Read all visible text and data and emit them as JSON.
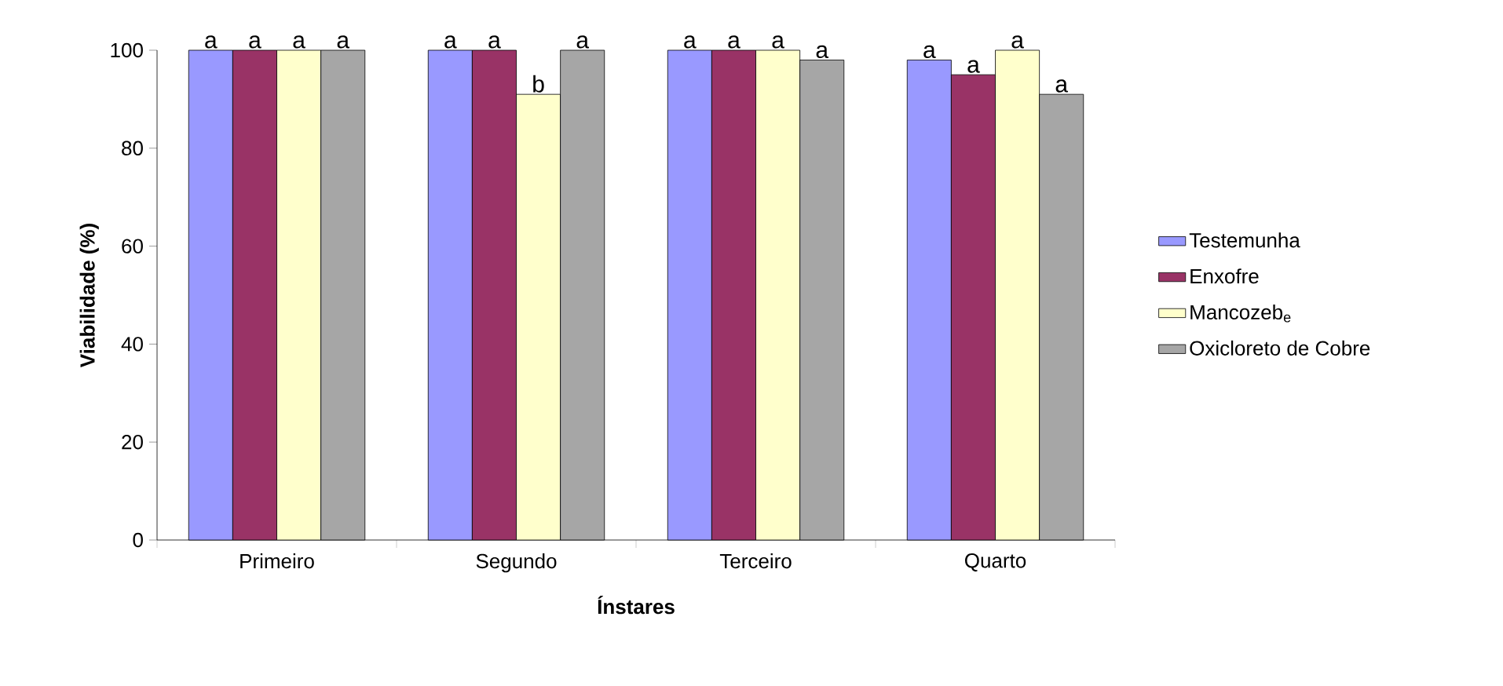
{
  "chart_data": {
    "type": "bar",
    "xlabel": "Ínstares",
    "ylabel": "Viabilidade (%)",
    "categories": [
      "Primeiro",
      "Segundo",
      "Terceiro",
      "Quarto"
    ],
    "series": [
      {
        "name": "Testemunha",
        "color": "#9999ff",
        "values": [
          100,
          100,
          100,
          98
        ],
        "value_labels": [
          "a",
          "a",
          "a",
          "a"
        ]
      },
      {
        "name": "Enxofre",
        "color": "#993366",
        "values": [
          100,
          100,
          100,
          95
        ],
        "value_labels": [
          "a",
          "a",
          "a",
          "a"
        ]
      },
      {
        "name": "Mancozeb$_{e}$",
        "color": "#ffffcc",
        "values": [
          100,
          91,
          100,
          100
        ],
        "value_labels": [
          "a",
          "b",
          "a",
          "a"
        ]
      },
      {
        "name": "Oxicloreto de Cobre",
        "color": "#a6a6a6",
        "values": [
          100,
          100,
          98,
          91
        ],
        "value_labels": [
          "a",
          "a",
          "a",
          "a"
        ]
      }
    ],
    "ylim": [
      0,
      100
    ],
    "yticks": [
      0,
      20,
      40,
      60,
      80,
      100
    ],
    "legend": "right",
    "grid": false
  }
}
